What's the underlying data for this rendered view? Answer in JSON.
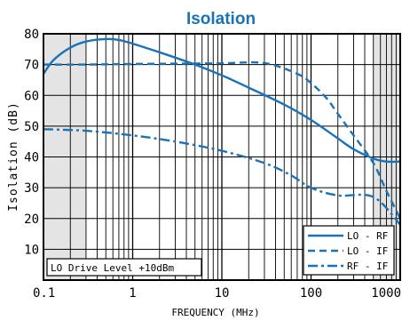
{
  "chart_data": {
    "type": "line",
    "title": "Isolation",
    "xlabel": "FREQUENCY (MHz)",
    "ylabel": "Isolation (dB)",
    "x_scale": "log",
    "xlim": [
      0.1,
      1000
    ],
    "ylim": [
      0,
      80
    ],
    "x_ticks": [
      "0.1",
      "1",
      "10",
      "100",
      "1000"
    ],
    "y_ticks": [
      "10",
      "20",
      "30",
      "40",
      "50",
      "60",
      "70",
      "80"
    ],
    "grid": true,
    "legend_position": "bottom-right",
    "annotation": "LO Drive Level +10dBm",
    "colors": {
      "series": "#1a73b8",
      "title": "#1a73b8",
      "shade": "#e4e4e4"
    },
    "shaded_regions_x": [
      [
        0.1,
        0.3
      ],
      [
        500,
        1000
      ]
    ],
    "series": [
      {
        "name": "LO - RF",
        "style": "solid",
        "x": [
          0.1,
          0.13,
          0.2,
          0.3,
          0.5,
          0.7,
          1,
          2,
          5,
          10,
          20,
          50,
          100,
          200,
          300,
          500,
          700,
          1000
        ],
        "y": [
          67,
          71.5,
          75.5,
          77.5,
          78.3,
          78,
          76.8,
          74,
          70,
          66.5,
          62.5,
          57,
          52,
          46,
          42.5,
          39.5,
          38.5,
          38.5
        ]
      },
      {
        "name": "LO - IF",
        "style": "dashed",
        "x": [
          0.1,
          0.3,
          1,
          3,
          10,
          30,
          70,
          100,
          150,
          200,
          300,
          500,
          700,
          1000
        ],
        "y": [
          70,
          70,
          70.2,
          70.3,
          70.4,
          70.5,
          67,
          64,
          59,
          54,
          47,
          38,
          29,
          20
        ]
      },
      {
        "name": "RF - IF",
        "style": "dashdot",
        "x": [
          0.1,
          0.3,
          1,
          3,
          10,
          30,
          60,
          100,
          200,
          500,
          1000
        ],
        "y": [
          49,
          48.5,
          47,
          45,
          42,
          38,
          34,
          30,
          27.5,
          27,
          18
        ]
      }
    ]
  }
}
